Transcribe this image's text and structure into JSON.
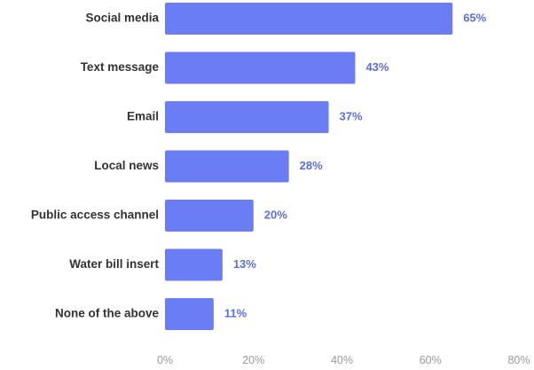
{
  "chart_data": {
    "type": "bar",
    "orientation": "horizontal",
    "categories": [
      "Social media",
      "Text message",
      "Email",
      "Local news",
      "Public access channel",
      "Water bill insert",
      "None of the above"
    ],
    "values": [
      65,
      43,
      37,
      28,
      20,
      13,
      11
    ],
    "value_labels": [
      "65%",
      "43%",
      "37%",
      "28%",
      "20%",
      "13%",
      "11%"
    ],
    "x_ticks": [
      0,
      20,
      40,
      60,
      80
    ],
    "x_tick_labels": [
      "0%",
      "20%",
      "40%",
      "60%",
      "80%"
    ],
    "xlim": [
      0,
      80
    ],
    "grid": false,
    "legend": "none",
    "bar_color": "#6b7df2",
    "label_color": "#5b6fe0",
    "title": "",
    "xlabel": "",
    "ylabel": ""
  }
}
